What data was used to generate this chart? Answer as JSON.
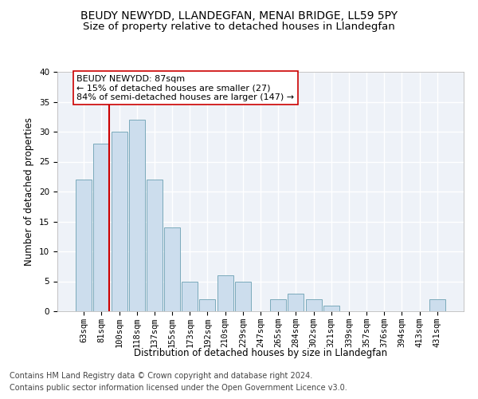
{
  "title": "BEUDY NEWYDD, LLANDEGFAN, MENAI BRIDGE, LL59 5PY",
  "subtitle": "Size of property relative to detached houses in Llandegfan",
  "xlabel": "Distribution of detached houses by size in Llandegfan",
  "ylabel": "Number of detached properties",
  "categories": [
    "63sqm",
    "81sqm",
    "100sqm",
    "118sqm",
    "137sqm",
    "155sqm",
    "173sqm",
    "192sqm",
    "210sqm",
    "229sqm",
    "247sqm",
    "265sqm",
    "284sqm",
    "302sqm",
    "321sqm",
    "339sqm",
    "357sqm",
    "376sqm",
    "394sqm",
    "413sqm",
    "431sqm"
  ],
  "values": [
    22,
    28,
    30,
    32,
    22,
    14,
    5,
    2,
    6,
    5,
    0,
    2,
    3,
    2,
    1,
    0,
    0,
    0,
    0,
    0,
    2
  ],
  "bar_color": "#ccdded",
  "bar_edge_color": "#7aaabb",
  "vline_color": "#cc0000",
  "annotation_text": "BEUDY NEWYDD: 87sqm\n← 15% of detached houses are smaller (27)\n84% of semi-detached houses are larger (147) →",
  "annotation_box_edge": "#cc0000",
  "ylim": [
    0,
    40
  ],
  "yticks": [
    0,
    5,
    10,
    15,
    20,
    25,
    30,
    35,
    40
  ],
  "footer_line1": "Contains HM Land Registry data © Crown copyright and database right 2024.",
  "footer_line2": "Contains public sector information licensed under the Open Government Licence v3.0.",
  "background_color": "#eef2f8",
  "grid_color": "#ffffff",
  "title_fontsize": 10,
  "subtitle_fontsize": 9.5,
  "axis_label_fontsize": 8.5,
  "tick_fontsize": 7.5,
  "annotation_fontsize": 8,
  "footer_fontsize": 7
}
